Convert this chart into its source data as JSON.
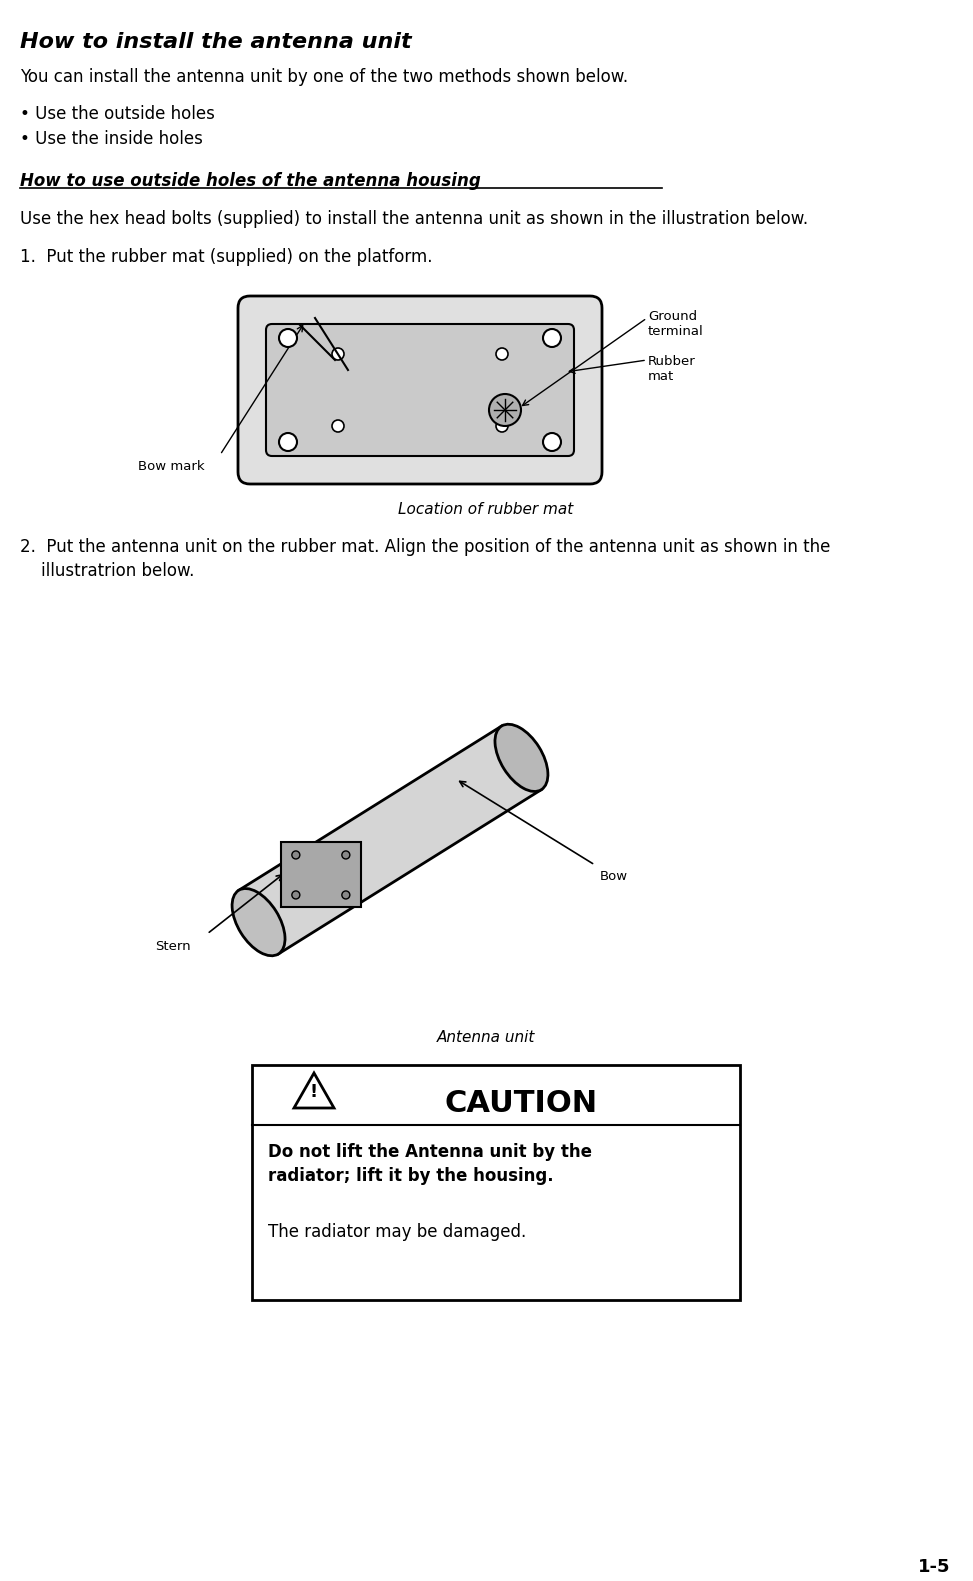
{
  "title": "How to install the antenna unit",
  "bg_color": "#ffffff",
  "text_color": "#000000",
  "page_number": "1-5",
  "title_fontsize": 16,
  "body_fontsize": 12,
  "section_title": "How to use outside holes of the antenna housing",
  "intro_text": "You can install the antenna unit by one of the two methods shown below.",
  "bullets": [
    "Use the outside holes",
    "Use the inside holes"
  ],
  "section_body": "Use the hex head bolts (supplied) to install the antenna unit as shown in the illustration below.",
  "step1": "1.  Put the rubber mat (supplied) on the platform.",
  "fig1_caption": "Location of rubber mat",
  "step2_line1": "2.  Put the antenna unit on the rubber mat. Align the position of the antenna unit as shown in the",
  "step2_line2": "    illustratrion below.",
  "fig2_caption": "Antenna unit",
  "caution_title": "CAUTION",
  "caution_bold": "Do not lift the Antenna unit by the\nradiator; lift it by the housing.",
  "caution_normal": "The radiator may be damaged.",
  "label_ground": "Ground\nterminal",
  "label_rubber": "Rubber\nmat",
  "label_bow": "Bow mark",
  "label_stern": "Stern",
  "label_bow2": "Bow"
}
